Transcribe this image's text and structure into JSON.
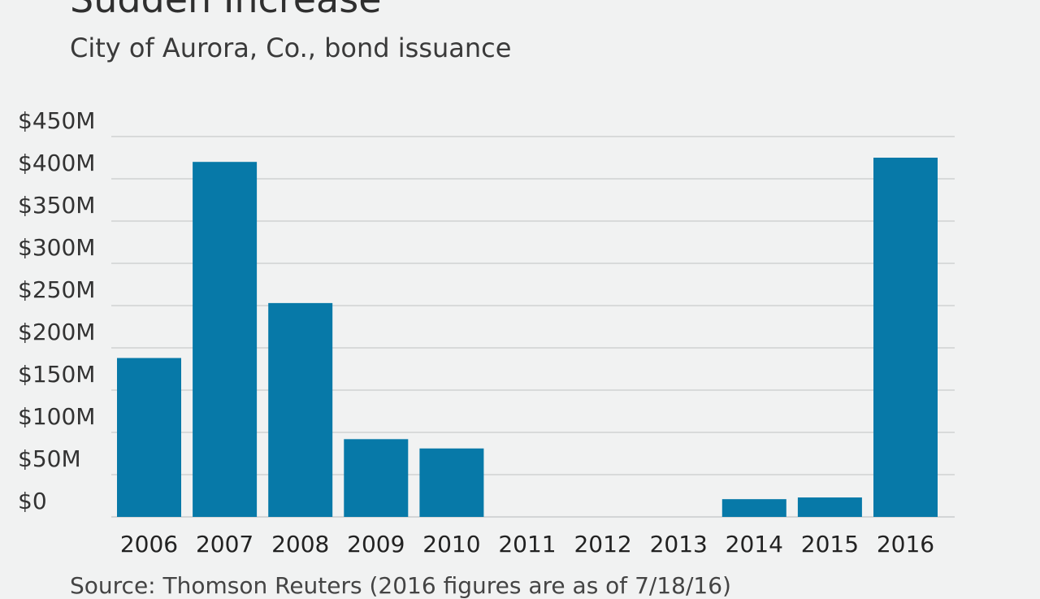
{
  "header": {
    "title": "Sudden Increase",
    "subtitle": "City of Aurora, Co., bond issuance"
  },
  "footer": {
    "source": "Source: Thomson Reuters (2016 figures are as of 7/18/16)"
  },
  "colors": {
    "bar": "#0779a8",
    "grid": "#c9cbcc",
    "background": "#f1f2f2"
  },
  "chart_data": {
    "type": "bar",
    "categories": [
      "2006",
      "2007",
      "2008",
      "2009",
      "2010",
      "2011",
      "2012",
      "2013",
      "2014",
      "2015",
      "2016"
    ],
    "values": [
      188,
      420,
      253,
      92,
      81,
      0,
      0,
      0,
      21,
      23,
      425
    ],
    "ylim": [
      0,
      450
    ],
    "yticks": [
      0,
      50,
      100,
      150,
      200,
      250,
      300,
      350,
      400,
      450
    ],
    "ytick_labels": [
      "$0",
      "$50M",
      "$100M",
      "$150M",
      "$200M",
      "$250M",
      "$300M",
      "$350M",
      "$400M",
      "$450M"
    ],
    "grid": true,
    "xlabel": "",
    "ylabel": ""
  }
}
